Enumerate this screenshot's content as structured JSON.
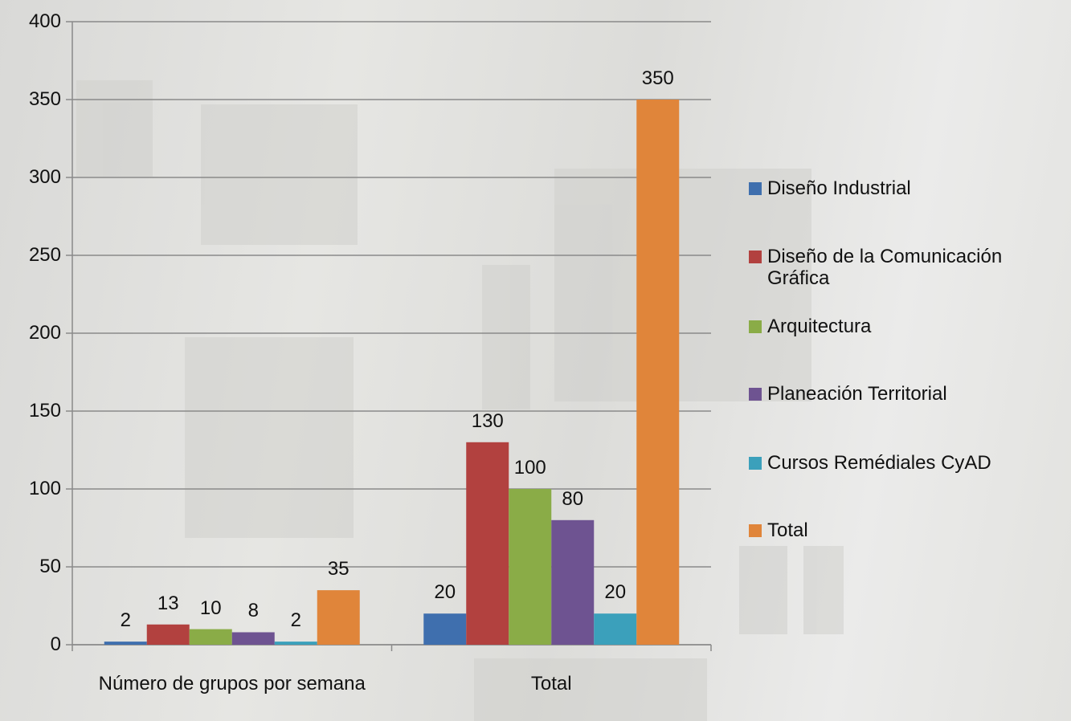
{
  "chart_data": {
    "type": "bar",
    "categories": [
      "Número de grupos por semana",
      "Total"
    ],
    "series": [
      {
        "name": "Diseño Industrial",
        "color": "#3f6fae",
        "values": [
          2,
          20
        ]
      },
      {
        "name": "Diseño de la Comunicación Gráfica",
        "color": "#b2413f",
        "values": [
          13,
          130
        ]
      },
      {
        "name": "Arquitectura",
        "color": "#8aac47",
        "values": [
          10,
          100
        ]
      },
      {
        "name": "Planeación Territorial",
        "color": "#6e5391",
        "values": [
          8,
          80
        ]
      },
      {
        "name": "Cursos Remédiales CyAD",
        "color": "#3ba0bb",
        "values": [
          2,
          20
        ]
      },
      {
        "name": "Total",
        "color": "#e0853a",
        "values": [
          35,
          350
        ]
      }
    ],
    "ylim": [
      0,
      400
    ],
    "yticks": [
      0,
      50,
      100,
      150,
      200,
      250,
      300,
      350,
      400
    ],
    "grid": true,
    "legend": "right"
  }
}
